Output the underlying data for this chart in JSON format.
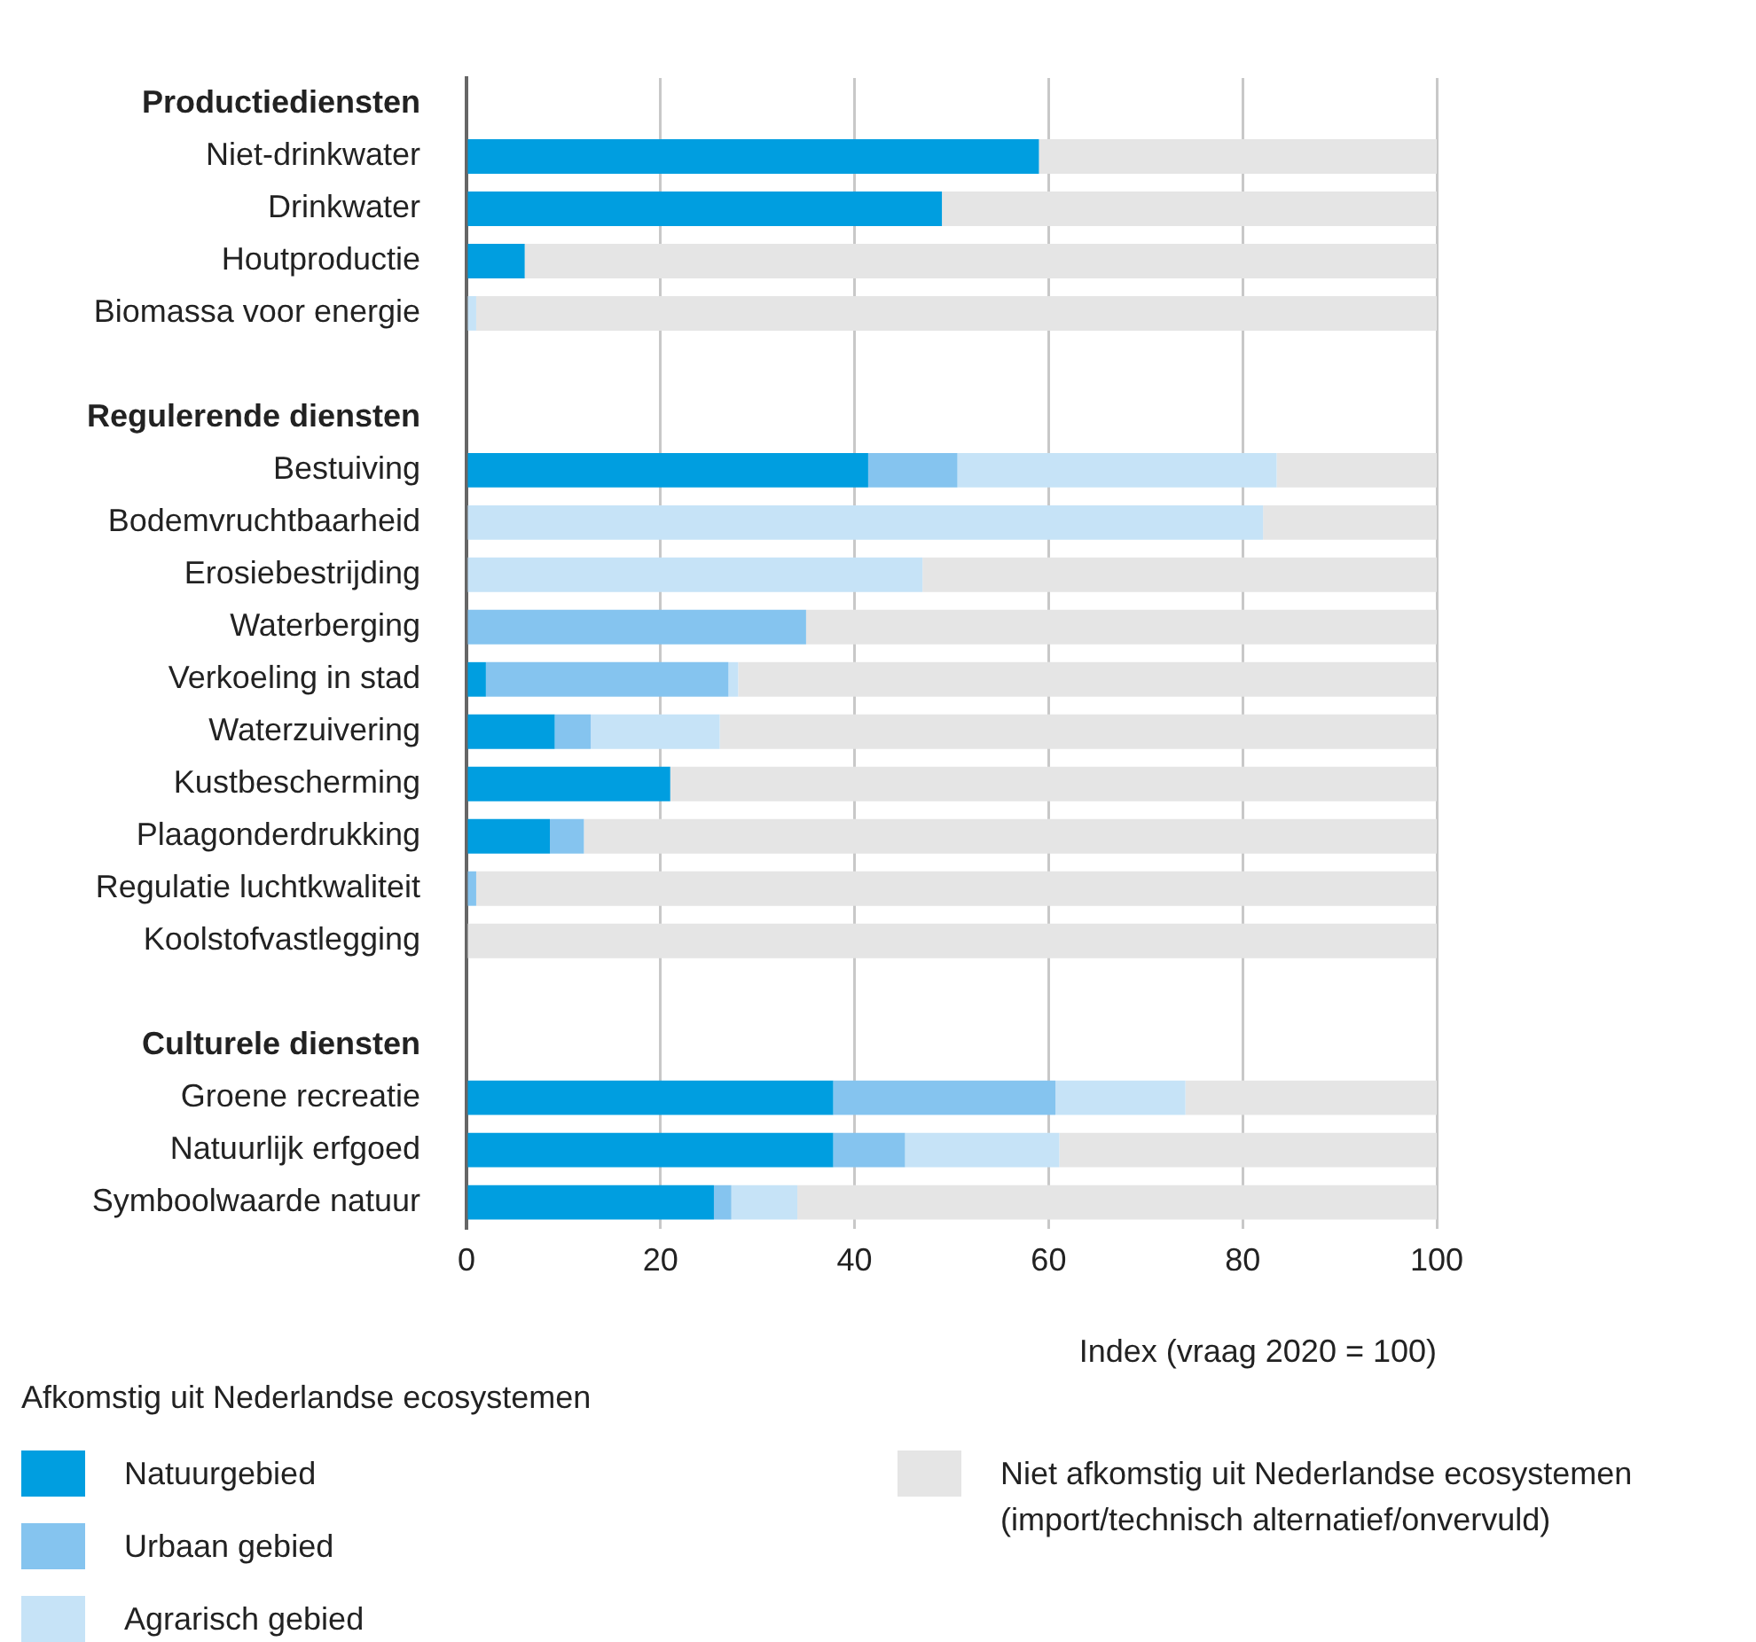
{
  "chart_data": {
    "type": "bar",
    "orientation": "horizontal",
    "stacked": true,
    "categories": [
      "Productiediensten",
      "Niet-drinkwater",
      "Drinkwater",
      "Houtproductie",
      "Biomassa voor energie",
      null,
      "Regulerende diensten",
      "Bestuiving",
      "Bodemvruchtbaarheid",
      "Erosiebestrijding",
      "Waterberging",
      "Verkoeling in stad",
      "Waterzuivering",
      "Kustbescherming",
      "Plaagonderdrukking",
      "Regulatie luchtkwaliteit",
      "Koolstofvastlegging",
      null,
      "Culturele diensten",
      "Groene recreatie",
      "Natuurlijk erfgoed",
      "Symboolwaarde natuur"
    ],
    "series": [
      {
        "name": "Natuurgebied",
        "color": "#009ee0",
        "values": [
          null,
          59,
          49,
          6,
          0,
          null,
          null,
          41.4,
          0,
          0,
          0,
          2,
          9.1,
          21,
          8.6,
          0,
          0,
          null,
          null,
          37.8,
          37.8,
          25.5
        ]
      },
      {
        "name": "Urbaan gebied",
        "color": "#85c4ef",
        "values": [
          null,
          0,
          0,
          0,
          0,
          null,
          null,
          9.2,
          0,
          0,
          35,
          25,
          3.7,
          0,
          3.5,
          1,
          0,
          null,
          null,
          22.9,
          7.4,
          1.8
        ]
      },
      {
        "name": "Agrarisch gebied",
        "color": "#c6e3f7",
        "values": [
          null,
          0,
          0,
          0,
          1,
          null,
          null,
          32.9,
          82.1,
          47,
          0,
          1,
          13.3,
          0,
          0,
          0,
          0,
          null,
          null,
          13.4,
          15.9,
          6.8
        ]
      },
      {
        "name": "Niet afkomstig uit Nederlandse ecosystemen (import/technisch alternatief/onvervuld)",
        "color": "#e5e5e5",
        "values": [
          null,
          41,
          51,
          94,
          99,
          null,
          null,
          16.5,
          17.9,
          53,
          65,
          72,
          73.9,
          79,
          87.9,
          99,
          100,
          null,
          null,
          25.9,
          38.9,
          65.9
        ]
      }
    ],
    "xlabel": "Index (vraag 2020 = 100)",
    "legend_title": "Afkomstig uit Nederlandse ecosystemen",
    "xlim": [
      0,
      100
    ],
    "xticks": [
      0,
      20,
      40,
      60,
      80,
      100
    ],
    "grid": "x",
    "legend": "bottom"
  }
}
